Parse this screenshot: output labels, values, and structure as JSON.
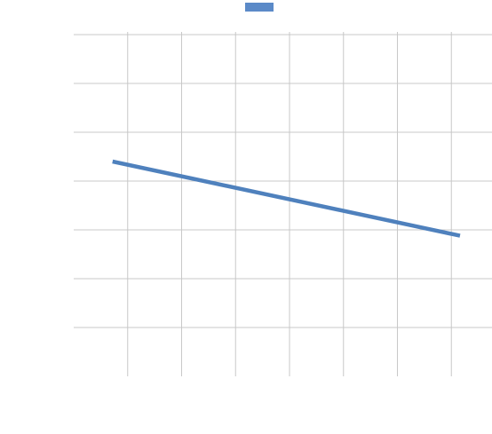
{
  "colors": {
    "series": "#4f81bd",
    "legend_swatch": "#5b8ac8",
    "grid": "#c8c8c8",
    "background": "#ffffff"
  },
  "chart_data": {
    "type": "line",
    "title": "",
    "xlabel": "",
    "ylabel": "",
    "grid": true,
    "legend": "top-center",
    "legend_entries": [
      ""
    ],
    "xlim": [
      0,
      8
    ],
    "ylim": [
      0,
      7
    ],
    "x_grid_values": [
      1,
      2,
      3,
      4,
      5,
      6,
      7,
      8
    ],
    "y_grid_values": [
      1,
      2,
      3,
      4,
      5,
      6,
      7
    ],
    "series": [
      {
        "x": [
          0.72,
          7.16
        ],
        "y": [
          4.4,
          2.88
        ]
      }
    ]
  }
}
